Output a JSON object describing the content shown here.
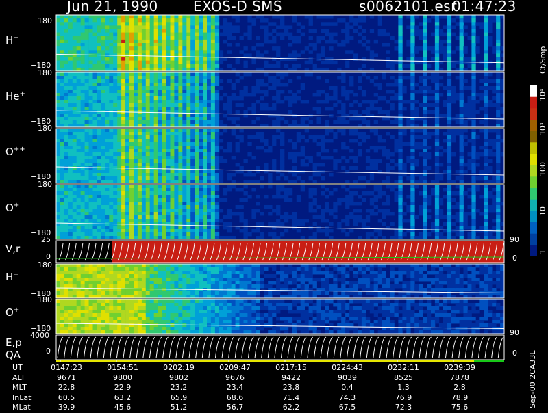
{
  "header": {
    "date": "Jun 21, 1990",
    "mission": "EXOS-D SMS",
    "file": "s0062101.esr",
    "time": "01:47:23"
  },
  "panels": [
    {
      "label": "H",
      "sup": "+",
      "top_tick": "180",
      "bottom_tick": "−180",
      "kind": "spectro_ion"
    },
    {
      "label": "He",
      "sup": "+",
      "top_tick": "180",
      "bottom_tick": "−180",
      "kind": "spectro_ion"
    },
    {
      "label": "O",
      "sup": "++",
      "top_tick": "180",
      "bottom_tick": "−180",
      "kind": "spectro_ion"
    },
    {
      "label": "O",
      "sup": "+",
      "top_tick": "180",
      "bottom_tick": "−180",
      "kind": "spectro_ion"
    },
    {
      "label": "V,r",
      "sup": "",
      "top_tick": "25",
      "bottom_tick": "0",
      "right_top": "90",
      "right_bottom": "0",
      "kind": "vr"
    },
    {
      "label": "H",
      "sup": "+",
      "top_tick": "180",
      "bottom_tick": "−180",
      "kind": "spectro_low"
    },
    {
      "label": "O",
      "sup": "+",
      "top_tick": "180",
      "bottom_tick": "−180",
      "kind": "spectro_low"
    },
    {
      "label": "E,p",
      "label2": "QA",
      "top_tick": "4000",
      "bottom_tick": "0",
      "right_top": "90",
      "right_bottom": "0",
      "kind": "ep"
    }
  ],
  "colorbar": {
    "title": "Ct/Smp",
    "labels": [
      "10⁴",
      "10³",
      "100",
      "10",
      "1"
    ]
  },
  "footer": {
    "version": "Sep-00 2CA33L",
    "rows": [
      {
        "name": "UT",
        "values": [
          "0147:23",
          "0154:51",
          "0202:19",
          "0209:47",
          "0217:15",
          "0224:43",
          "0232:11",
          "0239:39"
        ]
      },
      {
        "name": "ALT",
        "values": [
          "9671",
          "9800",
          "9802",
          "9676",
          "9422",
          "9039",
          "8525",
          "7878"
        ]
      },
      {
        "name": "MLT",
        "values": [
          "22.8",
          "22.9",
          "23.2",
          "23.4",
          "23.8",
          "0.4",
          "1.3",
          "2.8"
        ]
      },
      {
        "name": "InLat",
        "values": [
          "60.5",
          "63.2",
          "65.9",
          "68.6",
          "71.4",
          "74.3",
          "76.9",
          "78.9"
        ]
      },
      {
        "name": "MLat",
        "values": [
          "39.9",
          "45.6",
          "51.2",
          "56.7",
          "62.2",
          "67.5",
          "72.3",
          "75.6"
        ]
      }
    ]
  },
  "colors": {
    "background": "#000000",
    "spectro_bg": "#001a80",
    "accent_red": "#c81e14",
    "qa_yellow": "#e6e600",
    "qa_green": "#18c818"
  },
  "chart_data": {
    "type": "heatmap",
    "x_label": "UT",
    "x_ticks": [
      "0147:23",
      "0154:51",
      "0202:19",
      "0209:47",
      "0217:15",
      "0224:43",
      "0232:11",
      "0239:39"
    ],
    "y_range_pitch_angle": [
      -180,
      180
    ],
    "color_scale": "log",
    "color_range": [
      1,
      10000
    ],
    "color_units": "Ct/Smp"
  }
}
